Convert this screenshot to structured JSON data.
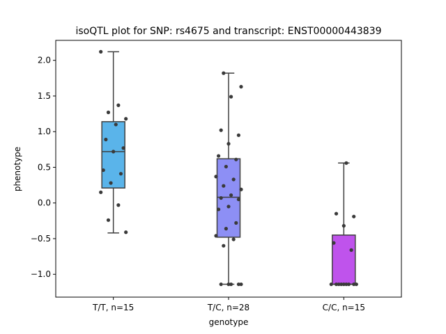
{
  "chart_data": {
    "type": "box",
    "title": "isoQTL plot for SNP: rs4675 and transcript: ENST00000443839",
    "xlabel": "genotype",
    "ylabel": "phenotype",
    "ylim": [
      -1.32,
      2.28
    ],
    "yticks": [
      -1.0,
      -0.5,
      0.0,
      0.5,
      1.0,
      1.5,
      2.0
    ],
    "ytick_labels": [
      "−1.0",
      "−0.5",
      "0.0",
      "0.5",
      "1.0",
      "1.5",
      "2.0"
    ],
    "grid": false,
    "categories": [
      "T/T, n=15",
      "T/C, n=28",
      "C/C, n=15"
    ],
    "colors": [
      "#5ab4ea",
      "#8d8ff5",
      "#bf53ec"
    ],
    "boxes": [
      {
        "whisker_low": -0.42,
        "q1": 0.21,
        "median": 0.72,
        "q3": 1.14,
        "whisker_high": 2.12
      },
      {
        "whisker_low": -1.14,
        "q1": -0.48,
        "median": 0.08,
        "q3": 0.62,
        "whisker_high": 1.82
      },
      {
        "whisker_low": -1.14,
        "q1": -1.14,
        "median": -1.14,
        "q3": -0.45,
        "whisker_high": 0.56
      }
    ],
    "points": [
      [
        2.12,
        1.37,
        1.27,
        1.18,
        1.1,
        0.89,
        0.77,
        0.72,
        0.46,
        0.41,
        0.28,
        0.15,
        -0.03,
        -0.24,
        -0.41
      ],
      [
        1.82,
        1.63,
        1.49,
        1.02,
        0.95,
        0.83,
        0.66,
        0.61,
        0.51,
        0.37,
        0.33,
        0.24,
        0.19,
        0.11,
        0.07,
        0.05,
        -0.05,
        -0.09,
        -0.28,
        -0.36,
        -0.46,
        -0.51,
        -0.6,
        -1.14,
        -1.14,
        -1.14,
        -1.14,
        -1.14
      ],
      [
        0.56,
        -0.15,
        -0.19,
        -0.32,
        -0.56,
        -0.66,
        -1.14,
        -1.14,
        -1.14,
        -1.14,
        -1.14,
        -1.14,
        -1.14,
        -1.14,
        -1.14
      ]
    ]
  }
}
